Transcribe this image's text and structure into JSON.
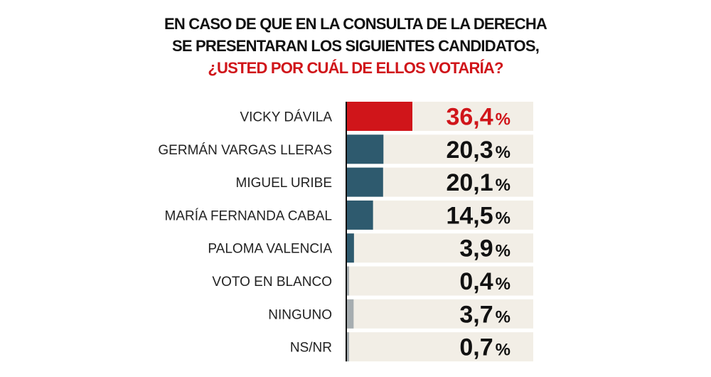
{
  "chart_data": {
    "type": "bar",
    "orientation": "horizontal",
    "title_lines": [
      "EN CASO DE QUE EN LA CONSULTA DE LA DERECHA",
      "SE PRESENTARAN LOS SIGUIENTES CANDIDATOS,",
      "¿USTED POR CUÁL DE ELLOS VOTARÍA?"
    ],
    "categories": [
      "VICKY DÁVILA",
      "GERMÁN VARGAS LLERAS",
      "MIGUEL URIBE",
      "MARÍA FERNANDA CABAL",
      "PALOMA VALENCIA",
      "VOTO EN BLANCO",
      "NINGUNO",
      "NS/NR"
    ],
    "values": [
      36.4,
      20.3,
      20.1,
      14.5,
      3.9,
      0.4,
      3.7,
      0.7
    ],
    "value_labels": [
      "36,4",
      "20,3",
      "20,1",
      "14,5",
      "3,9",
      "0,4",
      "3,7",
      "0,7"
    ],
    "unit": "%",
    "bar_colors": [
      "#d0151a",
      "#2e5a6e",
      "#2e5a6e",
      "#2e5a6e",
      "#2e5a6e",
      "#a6adb0",
      "#a6adb0",
      "#a6adb0"
    ],
    "value_colors": [
      "#d0151a",
      "#111111",
      "#111111",
      "#111111",
      "#111111",
      "#111111",
      "#111111",
      "#111111"
    ],
    "row_background": "#f2eee6",
    "grid": false,
    "legend": "none"
  }
}
